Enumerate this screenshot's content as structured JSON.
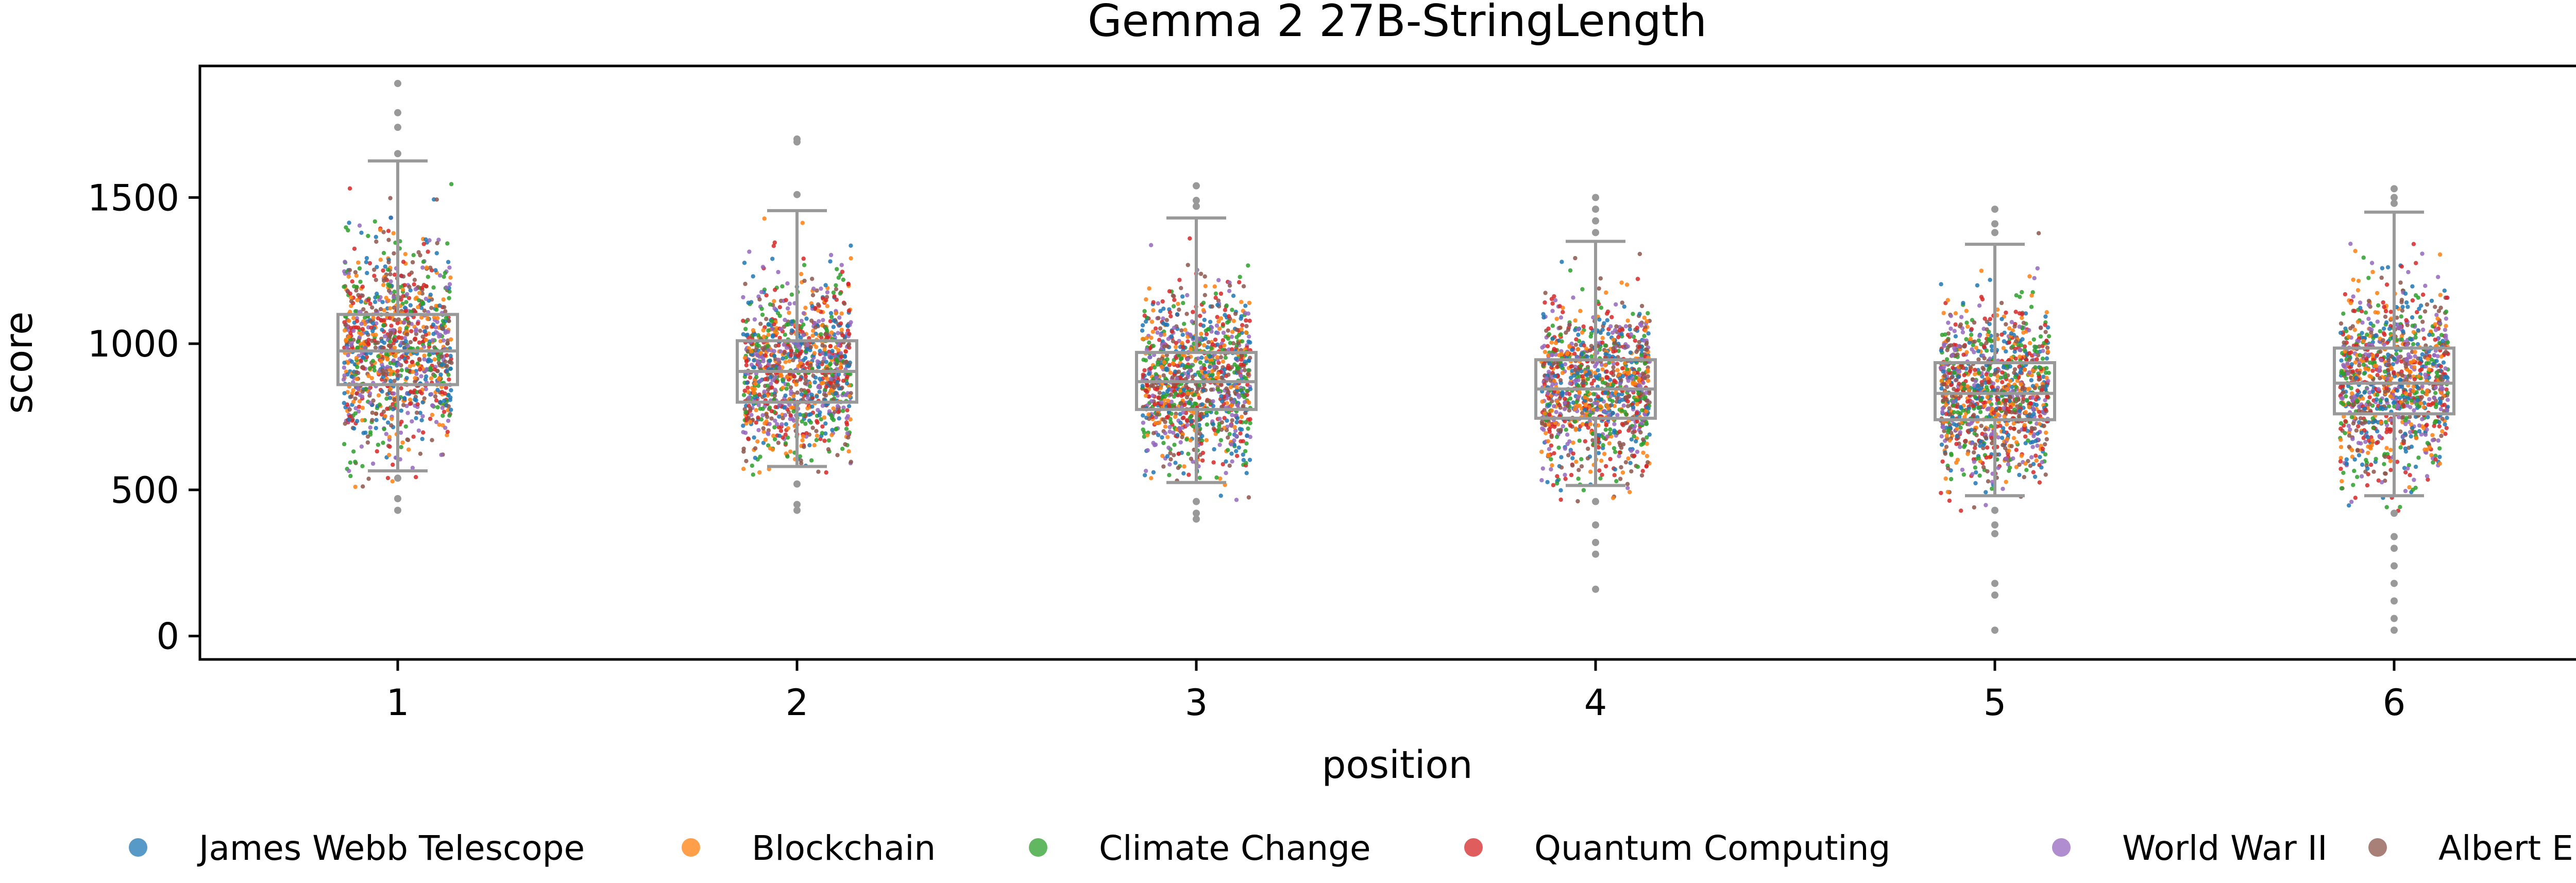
{
  "chart_data": {
    "type": "scatter",
    "subtype": "strip plot with box plots",
    "title": "Gemma 2 27B-StringLength",
    "xlabel": "position",
    "ylabel": "score",
    "categories": [
      "1",
      "2",
      "3",
      "4",
      "5",
      "6"
    ],
    "ylim": [
      -80,
      1950
    ],
    "yticks": [
      0,
      500,
      1000,
      1500
    ],
    "grid": false,
    "legend_position": "bottom",
    "series": [
      {
        "name": "James Webb Telescope",
        "color": "#1f77b4"
      },
      {
        "name": "Blockchain",
        "color": "#ff7f0e"
      },
      {
        "name": "Climate Change",
        "color": "#2ca02c"
      },
      {
        "name": "Quantum Computing",
        "color": "#d62728"
      },
      {
        "name": "World War II",
        "color": "#9467bd"
      },
      {
        "name": "Albert Einstein",
        "color": "#8c564b"
      }
    ],
    "box_color": "#999999",
    "boxes": [
      {
        "position": "1",
        "q1": 860,
        "median": 975,
        "q3": 1100,
        "whisker_low": 565,
        "whisker_high": 1625,
        "outliers": [
          1890,
          1790,
          1740,
          1650,
          540,
          470,
          430
        ]
      },
      {
        "position": "2",
        "q1": 800,
        "median": 905,
        "q3": 1010,
        "whisker_low": 580,
        "whisker_high": 1455,
        "outliers": [
          1700,
          1690,
          1510,
          520,
          450,
          430
        ]
      },
      {
        "position": "3",
        "q1": 775,
        "median": 870,
        "q3": 970,
        "whisker_low": 525,
        "whisker_high": 1430,
        "outliers": [
          1540,
          1490,
          1470,
          460,
          420,
          400
        ]
      },
      {
        "position": "4",
        "q1": 745,
        "median": 845,
        "q3": 945,
        "whisker_low": 515,
        "whisker_high": 1350,
        "outliers": [
          1500,
          1460,
          1420,
          1380,
          460,
          380,
          320,
          280,
          160
        ]
      },
      {
        "position": "5",
        "q1": 740,
        "median": 830,
        "q3": 935,
        "whisker_low": 480,
        "whisker_high": 1340,
        "outliers": [
          1460,
          1410,
          1380,
          430,
          380,
          350,
          180,
          140,
          20
        ]
      },
      {
        "position": "6",
        "q1": 760,
        "median": 865,
        "q3": 985,
        "whisker_low": 480,
        "whisker_high": 1450,
        "outliers": [
          1530,
          1500,
          1480,
          420,
          340,
          300,
          240,
          180,
          120,
          60,
          20
        ]
      }
    ]
  }
}
